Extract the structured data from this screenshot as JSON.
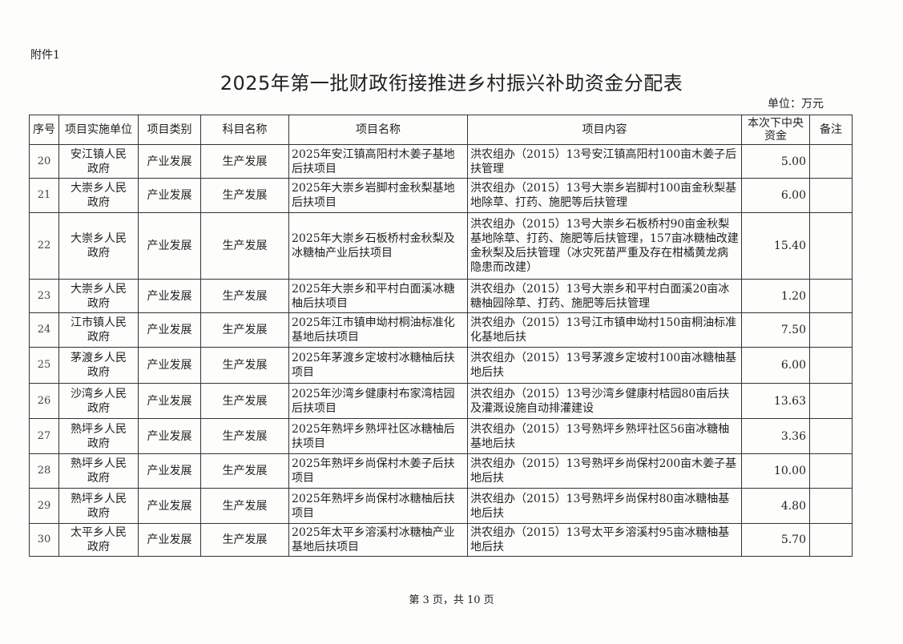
{
  "attachment": "附件1",
  "title": "2025年第一批财政衔接推进乡村振兴补助资金分配表",
  "unit": "单位：万元",
  "headers": [
    "序号",
    "项目实施单位",
    "项目类别",
    "科目名称",
    "项目名称",
    "项目内容",
    "本次下中央资金",
    "备注"
  ],
  "rows": [
    {
      "no": "20",
      "unit": "安江镇人民政府",
      "category": "产业发展",
      "subject": "生产发展",
      "name": "2025年安江镇高阳村木姜子基地后扶项目",
      "content": "洪农组办（2015）13号安江镇高阳村100亩木姜子后扶管理",
      "amount": "5.00",
      "note": ""
    },
    {
      "no": "21",
      "unit": "大崇乡人民政府",
      "category": "产业发展",
      "subject": "生产发展",
      "name": "2025年大崇乡岩脚村金秋梨基地后扶项目",
      "content": "洪农组办（2015）13号大崇乡岩脚村100亩金秋梨基地除草、打药、施肥等后扶管理",
      "amount": "6.00",
      "note": ""
    },
    {
      "no": "22",
      "unit": "大崇乡人民政府",
      "category": "产业发展",
      "subject": "生产发展",
      "name": "2025年大崇乡石板桥村金秋梨及冰糖柚产业后扶项目",
      "content": "洪农组办（2015）13号大崇乡石板桥村90亩金秋梨基地除草、打药、施肥等后扶管理，157亩冰糖柚改建金秋梨及后扶管理（冰灾死苗严重及存在柑橘黄龙病隐患而改建）",
      "amount": "15.40",
      "note": ""
    },
    {
      "no": "23",
      "unit": "大崇乡人民政府",
      "category": "产业发展",
      "subject": "生产发展",
      "name": "2025年大崇乡和平村白面溪冰糖柚后扶项目",
      "content": "洪农组办（2015）13号大崇乡和平村白面溪20亩冰糖柚园除草、打药、施肥等后扶管理",
      "amount": "1.20",
      "note": ""
    },
    {
      "no": "24",
      "unit": "江市镇人民政府",
      "category": "产业发展",
      "subject": "生产发展",
      "name": "2025年江市镇申坳村桐油标准化基地后扶项目",
      "content": "洪农组办（2015）13号江市镇申坳村150亩桐油标准化基地后扶",
      "amount": "7.50",
      "note": ""
    },
    {
      "no": "25",
      "unit": "茅渡乡人民政府",
      "category": "产业发展",
      "subject": "生产发展",
      "name": "2025年茅渡乡定坡村冰糖柚后扶项目",
      "content": "洪农组办（2015）13号茅渡乡定坡村100亩冰糖柚基地后扶",
      "amount": "6.00",
      "note": ""
    },
    {
      "no": "26",
      "unit": "沙湾乡人民政府",
      "category": "产业发展",
      "subject": "生产发展",
      "name": "2025年沙湾乡健康村布家湾桔园后扶项目",
      "content": "洪农组办（2015）13号沙湾乡健康村桔园80亩后扶及灌溉设施自动排灌建设",
      "amount": "13.63",
      "note": ""
    },
    {
      "no": "27",
      "unit": "熟坪乡人民政府",
      "category": "产业发展",
      "subject": "生产发展",
      "name": "2025年熟坪乡熟坪社区冰糖柚后扶项目",
      "content": "洪农组办（2015）13号熟坪乡熟坪社区56亩冰糖柚基地后扶",
      "amount": "3.36",
      "note": ""
    },
    {
      "no": "28",
      "unit": "熟坪乡人民政府",
      "category": "产业发展",
      "subject": "生产发展",
      "name": "2025年熟坪乡尚保村木姜子后扶项目",
      "content": "洪农组办（2015）13号熟坪乡尚保村200亩木姜子基地后扶",
      "amount": "10.00",
      "note": ""
    },
    {
      "no": "29",
      "unit": "熟坪乡人民政府",
      "category": "产业发展",
      "subject": "生产发展",
      "name": "2025年熟坪乡尚保村冰糖柚后扶项目",
      "content": "洪农组办（2015）13号熟坪乡尚保村80亩冰糖柚基地后扶",
      "amount": "4.80",
      "note": ""
    },
    {
      "no": "30",
      "unit": "太平乡人民政府",
      "category": "产业发展",
      "subject": "生产发展",
      "name": "2025年太平乡溶溪村冰糖柚产业基地后扶项目",
      "content": "洪农组办（2015）13号太平乡溶溪村95亩冰糖柚基地后扶",
      "amount": "5.70",
      "note": ""
    }
  ],
  "footer": "第 3 页，共 10 页"
}
